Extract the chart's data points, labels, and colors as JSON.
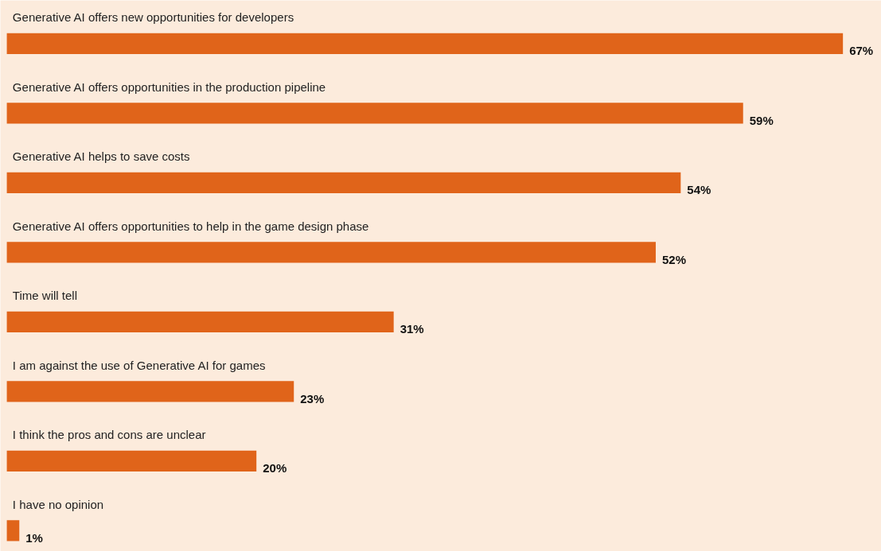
{
  "chart_data": {
    "type": "bar",
    "orientation": "horizontal",
    "color": "#e0641a",
    "categories": [
      "Generative AI offers new opportunities for developers",
      "Generative AI offers opportunities in the production pipeline",
      "Generative AI helps to save costs",
      "Generative AI offers opportunities to help in the game design phase",
      "Time will tell",
      "I am against the use of Generative AI for games",
      "I think the pros and cons are unclear",
      "I have no opinion"
    ],
    "values": [
      67,
      59,
      54,
      52,
      31,
      23,
      20,
      1
    ],
    "value_labels": [
      "67%",
      "59%",
      "54%",
      "52%",
      "31%",
      "23%",
      "20%",
      "1%"
    ]
  }
}
